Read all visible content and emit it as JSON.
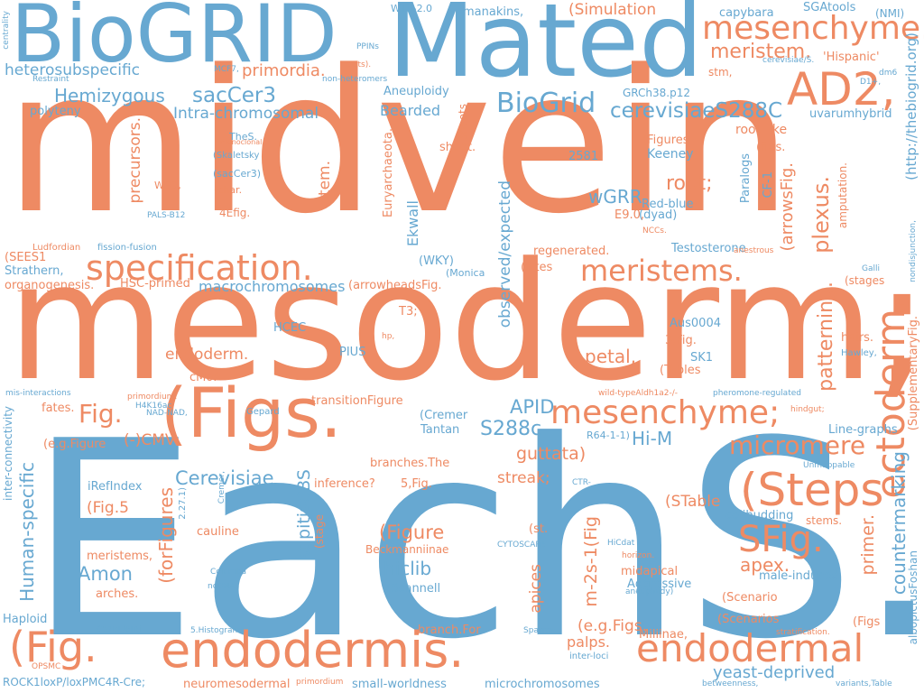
{
  "colors": {
    "orange": "#ee8a63",
    "blue": "#67a8d1",
    "background": "#ffffff"
  },
  "words": [
    {
      "text": "midvein",
      "c": "o",
      "big": true
    },
    {
      "text": "mesoderm;",
      "c": "o",
      "big": true
    },
    {
      "text": "EachS.",
      "c": "b",
      "big": true
    },
    {
      "text": "BioGRID",
      "c": "b"
    },
    {
      "text": "Mated",
      "c": "b"
    },
    {
      "text": "mesenchyme.",
      "c": "o"
    },
    {
      "text": "AD2,",
      "c": "o"
    },
    {
      "text": "meristem.",
      "c": "o"
    },
    {
      "text": "(Figs.",
      "c": "o"
    },
    {
      "text": "endodermis.",
      "c": "o"
    },
    {
      "text": "(Fig.",
      "c": "o"
    },
    {
      "text": "endodermal",
      "c": "o"
    },
    {
      "text": "specification.",
      "c": "o"
    },
    {
      "text": "meristems.",
      "c": "o"
    },
    {
      "text": "mesenchyme;",
      "c": "o"
    },
    {
      "text": "(Steps",
      "c": "o"
    },
    {
      "text": "SFig.",
      "c": "o"
    },
    {
      "text": "micromere",
      "c": "o"
    },
    {
      "text": "ectoderm.",
      "c": "o"
    },
    {
      "text": "BioGrid",
      "c": "b"
    },
    {
      "text": "cerevisiaeS288C",
      "c": "b"
    },
    {
      "text": "sacCer3",
      "c": "b"
    },
    {
      "text": "Hemizygous",
      "c": "b"
    },
    {
      "text": "Intra-chromosomal",
      "c": "b"
    },
    {
      "text": "heterosubspecific",
      "c": "b"
    },
    {
      "text": "primordia.",
      "c": "o"
    },
    {
      "text": "root;",
      "c": "o"
    },
    {
      "text": "plexus.",
      "c": "o"
    },
    {
      "text": "patterning.",
      "c": "o"
    },
    {
      "text": "Fig.",
      "c": "o"
    },
    {
      "text": "APID",
      "c": "b"
    },
    {
      "text": "S288c",
      "c": "b"
    },
    {
      "text": "Hi-M",
      "c": "b"
    },
    {
      "text": "guttata)",
      "c": "o"
    },
    {
      "text": "Cerevisiae",
      "c": "b"
    },
    {
      "text": "Amon",
      "c": "b"
    },
    {
      "text": "(Figure",
      "c": "o"
    },
    {
      "text": "hiclib",
      "c": "b"
    },
    {
      "text": "apex.",
      "c": "o"
    },
    {
      "text": "countermarking",
      "c": "b"
    },
    {
      "text": "primer.",
      "c": "o"
    },
    {
      "text": "yeast-deprived",
      "c": "b"
    },
    {
      "text": "macrochromosomes",
      "c": "b"
    },
    {
      "text": "endoderm.",
      "c": "o"
    },
    {
      "text": "petal,",
      "c": "o"
    },
    {
      "text": "Bearded",
      "c": "b"
    },
    {
      "text": "wGRR",
      "c": "b"
    },
    {
      "text": "observed/expected",
      "c": "b"
    },
    {
      "text": "Euryarchaeota.",
      "c": "o"
    },
    {
      "text": "stem.",
      "c": "o"
    },
    {
      "text": "precursors.",
      "c": "o"
    },
    {
      "text": "Human-specific",
      "c": "b"
    },
    {
      "text": "(forFigures",
      "c": "o"
    },
    {
      "text": "stipitisCBS",
      "c": "b"
    },
    {
      "text": "m-2s-1(Fig",
      "c": "o"
    },
    {
      "text": "apices",
      "c": "o"
    },
    {
      "text": "(arrowsFig.",
      "c": "o"
    },
    {
      "text": "streak;",
      "c": "o"
    },
    {
      "text": "(Fig.5",
      "c": "o"
    },
    {
      "text": "(STable",
      "c": "o"
    },
    {
      "text": "(e.g.Figs.",
      "c": "o"
    },
    {
      "text": "palps.",
      "c": "o"
    },
    {
      "text": "(-)CMV",
      "c": "o"
    },
    {
      "text": "Ekwall",
      "c": "b"
    },
    {
      "text": "(http://thebiogrid.org)",
      "c": "b"
    },
    {
      "text": "(SupplementaryFig.",
      "c": "o"
    },
    {
      "text": "albopictusFoshan",
      "c": "b"
    },
    {
      "text": "inter-connectivity",
      "c": "b"
    },
    {
      "text": "(Simulation",
      "c": "o"
    },
    {
      "text": "manakins,",
      "c": "b"
    },
    {
      "text": "capybara",
      "c": "b"
    },
    {
      "text": "SGAtools",
      "c": "b"
    },
    {
      "text": "(NMI)",
      "c": "b"
    },
    {
      "text": "WT3-2.0",
      "c": "b"
    },
    {
      "text": "'Hispanic'",
      "c": "o"
    },
    {
      "text": "uvarumhybrid",
      "c": "b"
    },
    {
      "text": "GRCh38.p12",
      "c": "b"
    },
    {
      "text": "Aneuploidy",
      "c": "b"
    },
    {
      "text": "polyteny",
      "c": "b"
    },
    {
      "text": "shoot.",
      "c": "o"
    },
    {
      "text": "shoots",
      "c": "o"
    },
    {
      "text": "root-like",
      "c": "o"
    },
    {
      "text": "(figs.",
      "c": "o"
    },
    {
      "text": "Keeney",
      "c": "b"
    },
    {
      "text": "(Figures",
      "c": "o"
    },
    {
      "text": "2581",
      "c": "b"
    },
    {
      "text": "Paralogs",
      "c": "b"
    },
    {
      "text": "CF-1",
      "c": "b"
    },
    {
      "text": "amputation.",
      "c": "o"
    },
    {
      "text": "Red-blue",
      "c": "b"
    },
    {
      "text": "(dyad)",
      "c": "b"
    },
    {
      "text": "E9.0,",
      "c": "o"
    },
    {
      "text": "Testosterone",
      "c": "b"
    },
    {
      "text": "regenerated.",
      "c": "o"
    },
    {
      "text": "(sites",
      "c": "o"
    },
    {
      "text": "(Monica",
      "c": "b"
    },
    {
      "text": "(stages",
      "c": "o"
    },
    {
      "text": "(WKY)",
      "c": "b"
    },
    {
      "text": "(arrowheadsFig.",
      "c": "o"
    },
    {
      "text": "HSC-primed",
      "c": "o"
    },
    {
      "text": "organogenesis.",
      "c": "o"
    },
    {
      "text": "Strathern,",
      "c": "b"
    },
    {
      "text": "(SEES1",
      "c": "o"
    },
    {
      "text": "HCEC",
      "c": "b"
    },
    {
      "text": "T3;",
      "c": "o"
    },
    {
      "text": "PIUS",
      "c": "b"
    },
    {
      "text": "Aus0004",
      "c": "b"
    },
    {
      "text": "3,Fig.",
      "c": "o"
    },
    {
      "text": "SK1",
      "c": "b"
    },
    {
      "text": "(Tables",
      "c": "o"
    },
    {
      "text": "hairs.",
      "c": "o"
    },
    {
      "text": "cMoP",
      "c": "o"
    },
    {
      "text": "transitionFigure",
      "c": "o"
    },
    {
      "text": "fates.",
      "c": "o"
    },
    {
      "text": "(Cremer",
      "c": "b"
    },
    {
      "text": "Tantan",
      "c": "b"
    },
    {
      "text": "R64-1-1)",
      "c": "b"
    },
    {
      "text": "Line-graphs",
      "c": "b"
    },
    {
      "text": "(e.g.Figure",
      "c": "o"
    },
    {
      "text": "branches.The",
      "c": "o"
    },
    {
      "text": "5,Fig.",
      "c": "o"
    },
    {
      "text": "inference?",
      "c": "o"
    },
    {
      "text": "iRefIndex",
      "c": "b"
    },
    {
      "text": "colibudding",
      "c": "b"
    },
    {
      "text": "stems.",
      "c": "o"
    },
    {
      "text": "cauline",
      "c": "o"
    },
    {
      "text": "Beckmanniinae",
      "c": "o"
    },
    {
      "text": "(st.",
      "c": "o"
    },
    {
      "text": "meristems,",
      "c": "o"
    },
    {
      "text": "arches.",
      "c": "o"
    },
    {
      "text": "(Scannell",
      "c": "b"
    },
    {
      "text": "midapical",
      "c": "o"
    },
    {
      "text": "Aggressive",
      "c": "b"
    },
    {
      "text": "male-induced",
      "c": "b"
    },
    {
      "text": "(Scenario",
      "c": "o"
    },
    {
      "text": "(Scenarios",
      "c": "o"
    },
    {
      "text": "(Figs",
      "c": "o"
    },
    {
      "text": "Haploid",
      "c": "b"
    },
    {
      "text": "branch.For",
      "c": "o"
    },
    {
      "text": "Miliinae,",
      "c": "o"
    },
    {
      "text": "neuromesodermal",
      "c": "o"
    },
    {
      "text": "small-worldness",
      "c": "b"
    },
    {
      "text": "microchromosomes",
      "c": "b"
    },
    {
      "text": "ROCK1loxP/loxPMC4R-Cre;",
      "c": "b"
    },
    {
      "text": "(Skaletsky",
      "c": "b"
    },
    {
      "text": "(sacCer3)",
      "c": "b"
    },
    {
      "text": "(char.",
      "c": "o"
    },
    {
      "text": "WED,",
      "c": "o"
    },
    {
      "text": "4Efig.",
      "c": "o"
    },
    {
      "text": "TheS.",
      "c": "b"
    },
    {
      "text": "monoclonal.",
      "c": "o"
    },
    {
      "text": "PALS-B12",
      "c": "b"
    },
    {
      "text": "Ludfordian",
      "c": "o"
    },
    {
      "text": "fission-fusion",
      "c": "b"
    },
    {
      "text": "NCCs.",
      "c": "o"
    },
    {
      "text": "anestrous",
      "c": "o"
    },
    {
      "text": "Galli",
      "c": "b"
    },
    {
      "text": "nondisjunction,",
      "c": "b"
    },
    {
      "text": "hp,",
      "c": "o"
    },
    {
      "text": "Hawley,",
      "c": "b"
    },
    {
      "text": "mis-interactions",
      "c": "b"
    },
    {
      "text": "primordium.",
      "c": "o"
    },
    {
      "text": "H4K16ac",
      "c": "b"
    },
    {
      "text": "NAD-NAD,",
      "c": "b"
    },
    {
      "text": "Gepard",
      "c": "b"
    },
    {
      "text": "wild-typeAldh1a2-/-",
      "c": "o"
    },
    {
      "text": "pheromone-regulated",
      "c": "b"
    },
    {
      "text": "hindgut;",
      "c": "o"
    },
    {
      "text": "Unmappable",
      "c": "b"
    },
    {
      "text": "CTR-",
      "c": "b"
    },
    {
      "text": "2.27.1)",
      "c": "b"
    },
    {
      "text": "Cremer,",
      "c": "b"
    },
    {
      "text": "(stage",
      "c": "o"
    },
    {
      "text": "CYTOSCAPE",
      "c": "b"
    },
    {
      "text": "HiCdat",
      "c": "b"
    },
    {
      "text": "horizon.",
      "c": "o"
    },
    {
      "text": "aneuploidy)",
      "c": "b"
    },
    {
      "text": "Columba",
      "c": "b"
    },
    {
      "text": "ncDNA,",
      "c": "b"
    },
    {
      "text": "C57BL/6JRj",
      "c": "b"
    },
    {
      "text": "5.Histograms",
      "c": "b"
    },
    {
      "text": "Sparrow",
      "c": "b"
    },
    {
      "text": "inter-loci",
      "c": "b"
    },
    {
      "text": "stratification.",
      "c": "o"
    },
    {
      "text": "OPSMC",
      "c": "o"
    },
    {
      "text": "primordium",
      "c": "o"
    },
    {
      "text": "betweenness,",
      "c": "b"
    },
    {
      "text": "variants,Table",
      "c": "b"
    },
    {
      "text": "centrality",
      "c": "b"
    },
    {
      "text": "Restraint",
      "c": "b"
    },
    {
      "text": "PPINs",
      "c": "b"
    },
    {
      "text": "MCF7,",
      "c": "b"
    },
    {
      "text": "roots).",
      "c": "o"
    },
    {
      "text": "non-heteromers",
      "c": "b"
    },
    {
      "text": "stm,",
      "c": "o"
    },
    {
      "text": "cerevisiae/S.",
      "c": "b"
    },
    {
      "text": "dm6",
      "c": "b"
    },
    {
      "text": "D1+,",
      "c": "b"
    }
  ]
}
